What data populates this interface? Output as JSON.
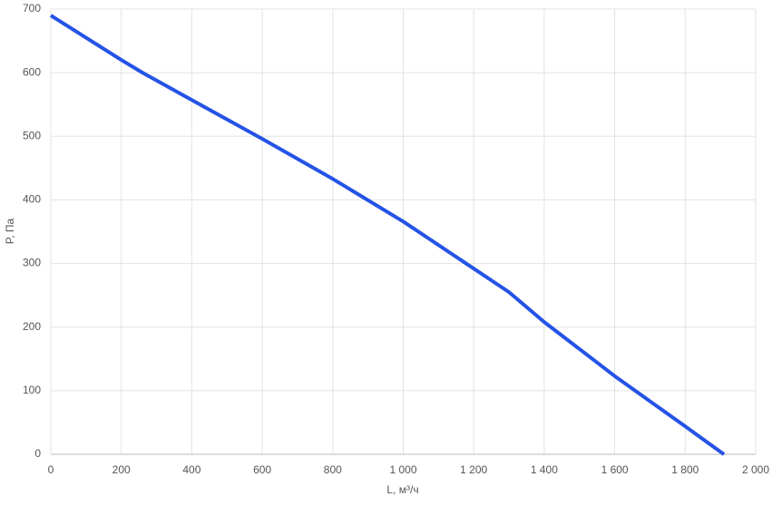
{
  "chart_data": {
    "type": "line",
    "x_label": "L, м³/ч",
    "y_label": "P, Па",
    "x": [
      0,
      200,
      260,
      400,
      600,
      800,
      1000,
      1200,
      1300,
      1400,
      1600,
      1800,
      1910
    ],
    "series": [
      {
        "name": "P",
        "color": "#2553e6",
        "values": [
          690,
          620,
          600,
          557,
          496,
          433,
          366,
          292,
          255,
          208,
          123,
          44,
          0
        ]
      }
    ],
    "xlim": [
      0,
      2000
    ],
    "xticks": [
      0,
      200,
      400,
      600,
      800,
      {
        "value": 1000,
        "label": "1 000"
      },
      {
        "value": 1200,
        "label": "1 200"
      },
      {
        "value": 1400,
        "label": "1 400"
      },
      {
        "value": 1600,
        "label": "1 600"
      },
      {
        "value": 1800,
        "label": "1 800"
      },
      {
        "value": 2000,
        "label": "2 000"
      }
    ],
    "ylim": [
      0,
      700
    ],
    "yticks": [
      0,
      100,
      200,
      300,
      400,
      500,
      600,
      700
    ],
    "grid": true
  }
}
